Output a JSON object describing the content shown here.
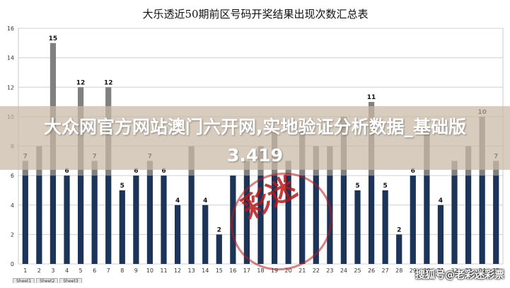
{
  "chart_data": {
    "type": "bar",
    "title": "大乐透近50期前区号码开奖结果出现次数汇总表",
    "xlabel": "",
    "ylabel": "",
    "ylim": [
      0,
      16
    ],
    "yticks": [
      0,
      2,
      4,
      6,
      8,
      10,
      12,
      14,
      16
    ],
    "grid": true,
    "legend": "none",
    "bar_colors": {
      "low": "#1c3458",
      "high": "#808080",
      "threshold": 6
    },
    "categories": [
      "1",
      "2",
      "3",
      "4",
      "5",
      "6",
      "7",
      "8",
      "9",
      "10",
      "11",
      "12",
      "13",
      "14",
      "15",
      "16",
      "17",
      "18",
      "19",
      "20",
      "21",
      "22",
      "23",
      "24",
      "25",
      "26",
      "27",
      "28",
      "29",
      "30",
      "31",
      "32",
      "33",
      "34",
      "35"
    ],
    "values": [
      7,
      8,
      15,
      6,
      12,
      7,
      12,
      5,
      6,
      7,
      6,
      4,
      8,
      4,
      2,
      6,
      7,
      8,
      9,
      7,
      9,
      8,
      8,
      10,
      5,
      11,
      5,
      2,
      6,
      9,
      4,
      7,
      8,
      10,
      7
    ],
    "data_labels": [
      "7",
      "",
      "15",
      "6",
      "12",
      "7",
      "12",
      "5",
      "6",
      "7",
      "6",
      "4",
      "",
      "4",
      "2",
      "",
      "",
      "",
      "",
      "",
      "",
      "",
      "",
      "",
      "5",
      "11",
      "5",
      "2",
      "6",
      "",
      "4",
      "",
      "",
      "10",
      "7"
    ]
  },
  "overlay": {
    "banner_text": "大众网官方网站澳门六开网,实地验证分析数据_基础版3.419",
    "stamp_text": "彩迷",
    "watermark_text": "搜狐号@老彩迷彩票"
  },
  "sheet_tabs": [
    "Sheet1",
    "Sheet2",
    "Sheet3"
  ]
}
